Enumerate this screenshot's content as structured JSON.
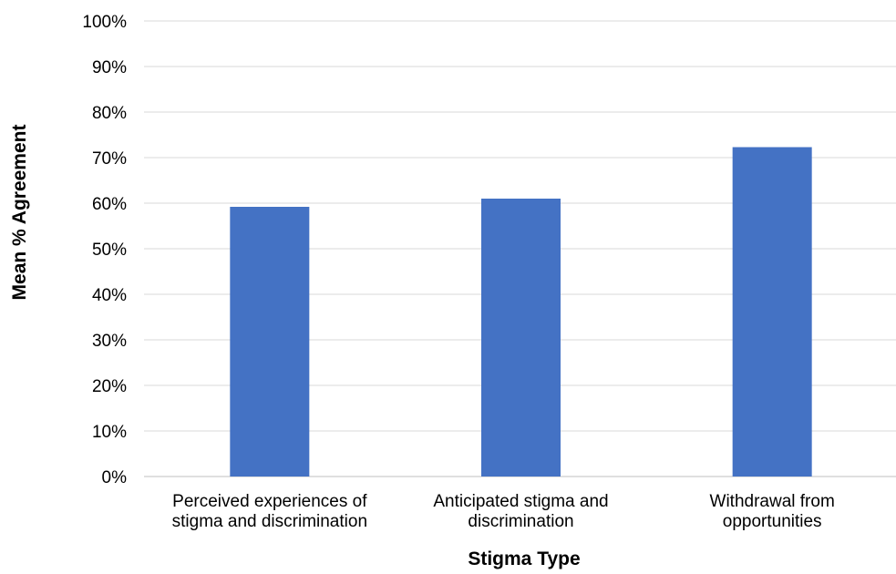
{
  "chart_data": {
    "type": "bar",
    "title": "",
    "xlabel": "Stigma Type",
    "ylabel": "Mean % Agreement",
    "categories": [
      [
        "Perceived experiences of",
        "stigma and discrimination"
      ],
      [
        "Anticipated stigma and",
        "discrimination"
      ],
      [
        "Withdrawal from",
        "opportunities"
      ]
    ],
    "values": [
      59.2,
      61.0,
      72.3
    ],
    "ylim": [
      0,
      100
    ],
    "yticks": [
      0,
      10,
      20,
      30,
      40,
      50,
      60,
      70,
      80,
      90,
      100
    ],
    "ytick_labels": [
      "0%",
      "10%",
      "20%",
      "30%",
      "40%",
      "50%",
      "60%",
      "70%",
      "80%",
      "90%",
      "100%"
    ],
    "grid": true,
    "legend": "none",
    "colors": {
      "bar": "#4472C4",
      "grid": "#D9D9D9",
      "axis": "#BFBFBF"
    }
  }
}
